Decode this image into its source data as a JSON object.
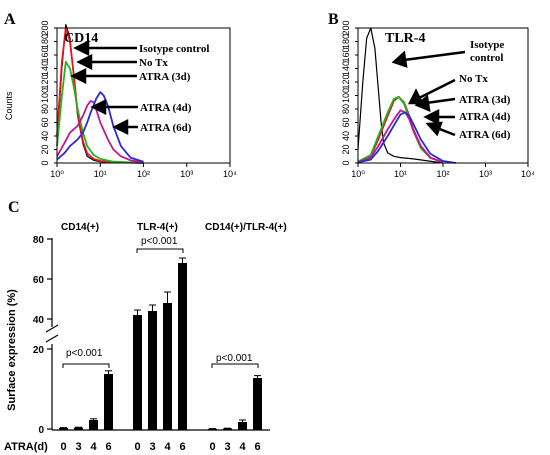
{
  "chart_data": [
    {
      "type": "line",
      "panel": "A",
      "title": "CD14",
      "ylabel": "Counts",
      "xscale": "log",
      "xlim": [
        1,
        10000
      ],
      "ylim": [
        0,
        200
      ],
      "x_ticks": [
        "10⁰",
        "10¹",
        "10²",
        "10³",
        "10⁴"
      ],
      "y_ticks": [
        "0",
        "20",
        "40",
        "60",
        "80",
        "100",
        "120",
        "140",
        "160",
        "180",
        "200"
      ],
      "legend": [
        "Isotype control",
        "No Tx",
        "ATRA (3d)",
        "ATRA (4d)",
        "ATRA (6d)"
      ],
      "series": [
        {
          "name": "Isotype control",
          "color": "#000000",
          "x": [
            1,
            1.3,
            1.6,
            2,
            2.5,
            3,
            4,
            5,
            7,
            10,
            20,
            100
          ],
          "y": [
            30,
            140,
            205,
            185,
            120,
            70,
            28,
            10,
            4,
            2,
            1,
            0
          ]
        },
        {
          "name": "No Tx",
          "color": "#e8141e",
          "x": [
            1,
            1.3,
            1.6,
            2,
            2.5,
            3,
            4,
            5,
            7,
            10,
            20,
            100
          ],
          "y": [
            40,
            150,
            200,
            180,
            125,
            75,
            32,
            14,
            6,
            3,
            1,
            0
          ]
        },
        {
          "name": "ATRA (3d)",
          "color": "#1fb51f",
          "x": [
            1,
            1.3,
            1.6,
            2,
            2.5,
            3,
            4,
            5,
            7,
            10,
            20,
            100
          ],
          "y": [
            25,
            100,
            150,
            140,
            110,
            80,
            45,
            25,
            12,
            6,
            2,
            0
          ]
        },
        {
          "name": "ATRA (4d)",
          "color": "#c2188e",
          "x": [
            1,
            1.5,
            2,
            3,
            4,
            5,
            6,
            7,
            8,
            10,
            15,
            20,
            30,
            50,
            100
          ],
          "y": [
            10,
            30,
            45,
            55,
            70,
            85,
            92,
            90,
            80,
            60,
            35,
            20,
            10,
            4,
            1
          ]
        },
        {
          "name": "ATRA (6d)",
          "color": "#2a2ad9",
          "x": [
            1,
            1.5,
            2,
            3,
            4,
            5,
            6,
            8,
            10,
            12,
            15,
            20,
            30,
            50,
            100
          ],
          "y": [
            5,
            15,
            25,
            35,
            45,
            60,
            75,
            95,
            105,
            100,
            85,
            55,
            25,
            8,
            2
          ]
        }
      ]
    },
    {
      "type": "line",
      "panel": "B",
      "title": "TLR-4",
      "xscale": "log",
      "xlim": [
        1,
        10000
      ],
      "ylim": [
        0,
        200
      ],
      "x_ticks": [
        "10⁰",
        "10¹",
        "10²",
        "10³",
        "10⁴"
      ],
      "y_ticks": [
        "0",
        "20",
        "40",
        "60",
        "80",
        "100",
        "120",
        "140",
        "160",
        "180",
        "200"
      ],
      "legend": [
        "Isotype control",
        "No Tx",
        "ATRA (3d)",
        "ATRA (4d)",
        "ATRA (6d)"
      ],
      "series": [
        {
          "name": "Isotype control",
          "color": "#000000",
          "x": [
            1,
            1.3,
            1.6,
            2,
            2.5,
            3,
            3.5,
            4,
            5,
            7,
            10,
            20,
            100
          ],
          "y": [
            20,
            120,
            185,
            200,
            170,
            110,
            60,
            30,
            15,
            10,
            8,
            6,
            0
          ]
        },
        {
          "name": "No Tx",
          "color": "#e8141e",
          "x": [
            1,
            2,
            3,
            5,
            7,
            9,
            12,
            15,
            20,
            30,
            50,
            100
          ],
          "y": [
            2,
            10,
            35,
            70,
            92,
            98,
            90,
            75,
            50,
            25,
            8,
            1
          ]
        },
        {
          "name": "ATRA (3d)",
          "color": "#1fb51f",
          "x": [
            1,
            2,
            3,
            5,
            7,
            9,
            12,
            15,
            20,
            30,
            50,
            100
          ],
          "y": [
            2,
            12,
            40,
            75,
            95,
            98,
            88,
            72,
            48,
            22,
            8,
            1
          ]
        },
        {
          "name": "ATRA (4d)",
          "color": "#c2188e",
          "x": [
            1,
            2,
            3,
            5,
            8,
            10,
            13,
            16,
            20,
            30,
            50,
            100
          ],
          "y": [
            1,
            8,
            25,
            50,
            70,
            78,
            75,
            65,
            48,
            25,
            8,
            1
          ]
        },
        {
          "name": "ATRA (6d)",
          "color": "#2a2ad9",
          "x": [
            1,
            2,
            3,
            5,
            8,
            10,
            13,
            16,
            20,
            30,
            50,
            100,
            200
          ],
          "y": [
            1,
            5,
            18,
            40,
            62,
            72,
            75,
            70,
            58,
            35,
            14,
            3,
            0
          ]
        }
      ]
    },
    {
      "type": "bar",
      "panel": "C",
      "ylabel": "Surface expression (%)",
      "x_axis_label": "ATRA(d)",
      "categories": [
        "0",
        "3",
        "4",
        "6"
      ],
      "y_ticks": [
        "0",
        "20",
        "40",
        "60",
        "80"
      ],
      "groups": [
        {
          "title": "CD14(+)",
          "values": [
            0.5,
            0.6,
            2.5,
            14
          ],
          "errors": [
            0.1,
            0.1,
            0.3,
            0.8
          ],
          "pvalue": "p<0.001"
        },
        {
          "title": "TLR-4(+)",
          "values": [
            42,
            44,
            48,
            68
          ],
          "errors": [
            2.5,
            3,
            5.5,
            2.5
          ],
          "pvalue": "p<0.001"
        },
        {
          "title": "CD14(+)/TLR-4(+)",
          "values": [
            0.3,
            0.4,
            2,
            13
          ],
          "errors": [
            0.05,
            0.05,
            0.5,
            0.6
          ],
          "pvalue": "p<0.001"
        }
      ]
    }
  ]
}
